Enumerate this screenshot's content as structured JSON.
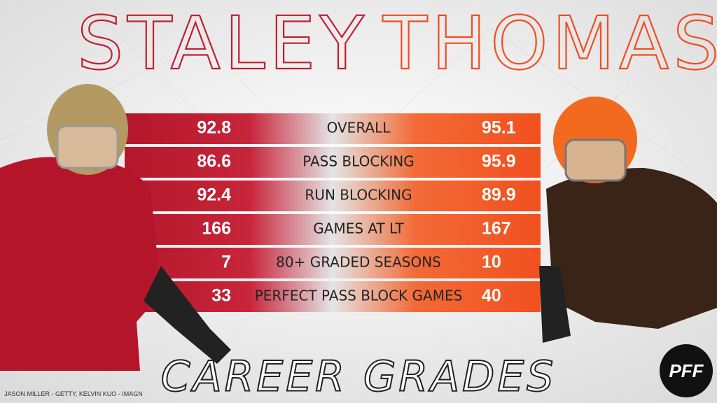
{
  "header": {
    "left_name": "STALEY",
    "right_name": "THOMAS"
  },
  "table": {
    "rows": [
      {
        "left": 92.8,
        "label": "OVERALL",
        "right": 95.1
      },
      {
        "left": 86.6,
        "label": "PASS BLOCKING",
        "right": 95.9
      },
      {
        "left": 92.4,
        "label": "RUN BLOCKING",
        "right": 89.9
      },
      {
        "left": 166,
        "label": "GAMES AT LT",
        "right": 167
      },
      {
        "left": 7,
        "label": "80+ GRADED SEASONS",
        "right": 10
      },
      {
        "left": 33,
        "label": "PERFECT PASS BLOCK GAMES",
        "right": 40
      }
    ]
  },
  "footer": {
    "title": "CAREER GRADES",
    "credit": "JASON MILLER - GETTY, KELVIN KUO - IMAGN",
    "logo": "PFF"
  }
}
